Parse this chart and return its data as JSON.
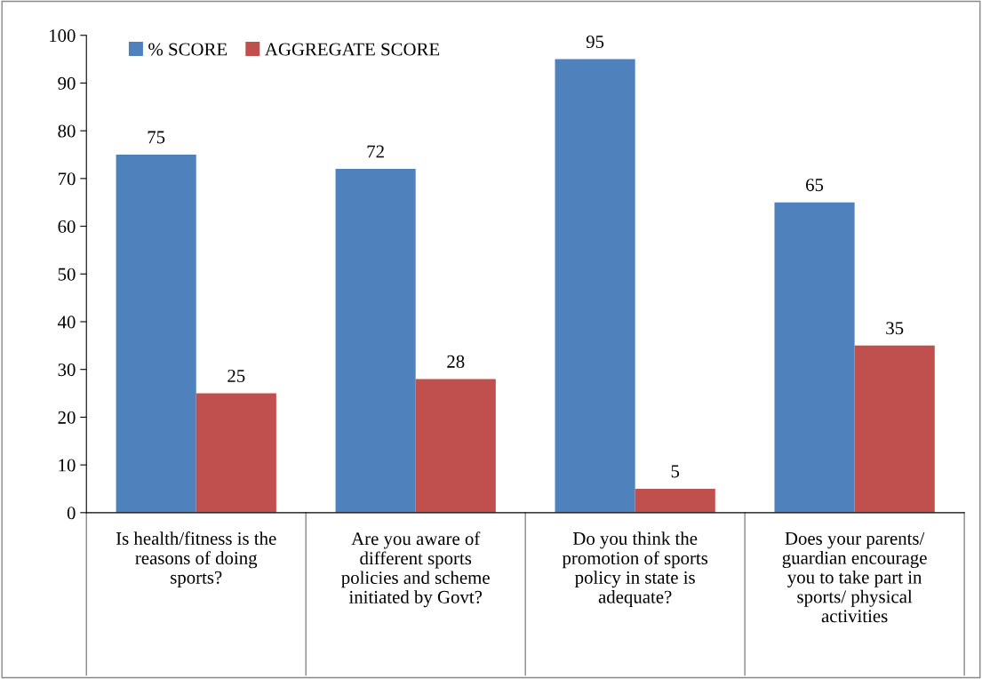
{
  "chart_data": {
    "type": "bar",
    "categories": [
      "Is health/fitness is the\nreasons of doing\nsports?",
      "Are you aware of\ndifferent sports\npolicies and scheme\ninitiated by Govt?",
      "Do you think the\npromotion of sports\npolicy in state is\nadequate?",
      "Does your parents/\nguardian encourage\nyou to take part in\nsports/ physical\nactivities"
    ],
    "series": [
      {
        "name": "% SCORE",
        "color": "#4f81bd",
        "values": [
          75,
          72,
          95,
          65
        ]
      },
      {
        "name": "AGGREGATE SCORE",
        "color": "#c0504d",
        "values": [
          25,
          28,
          5,
          35
        ]
      }
    ],
    "ylim": [
      0,
      100
    ],
    "yticks": [
      0,
      10,
      20,
      30,
      40,
      50,
      60,
      70,
      80,
      90,
      100
    ],
    "data_labels": true,
    "grid": false,
    "legend": "top left"
  }
}
